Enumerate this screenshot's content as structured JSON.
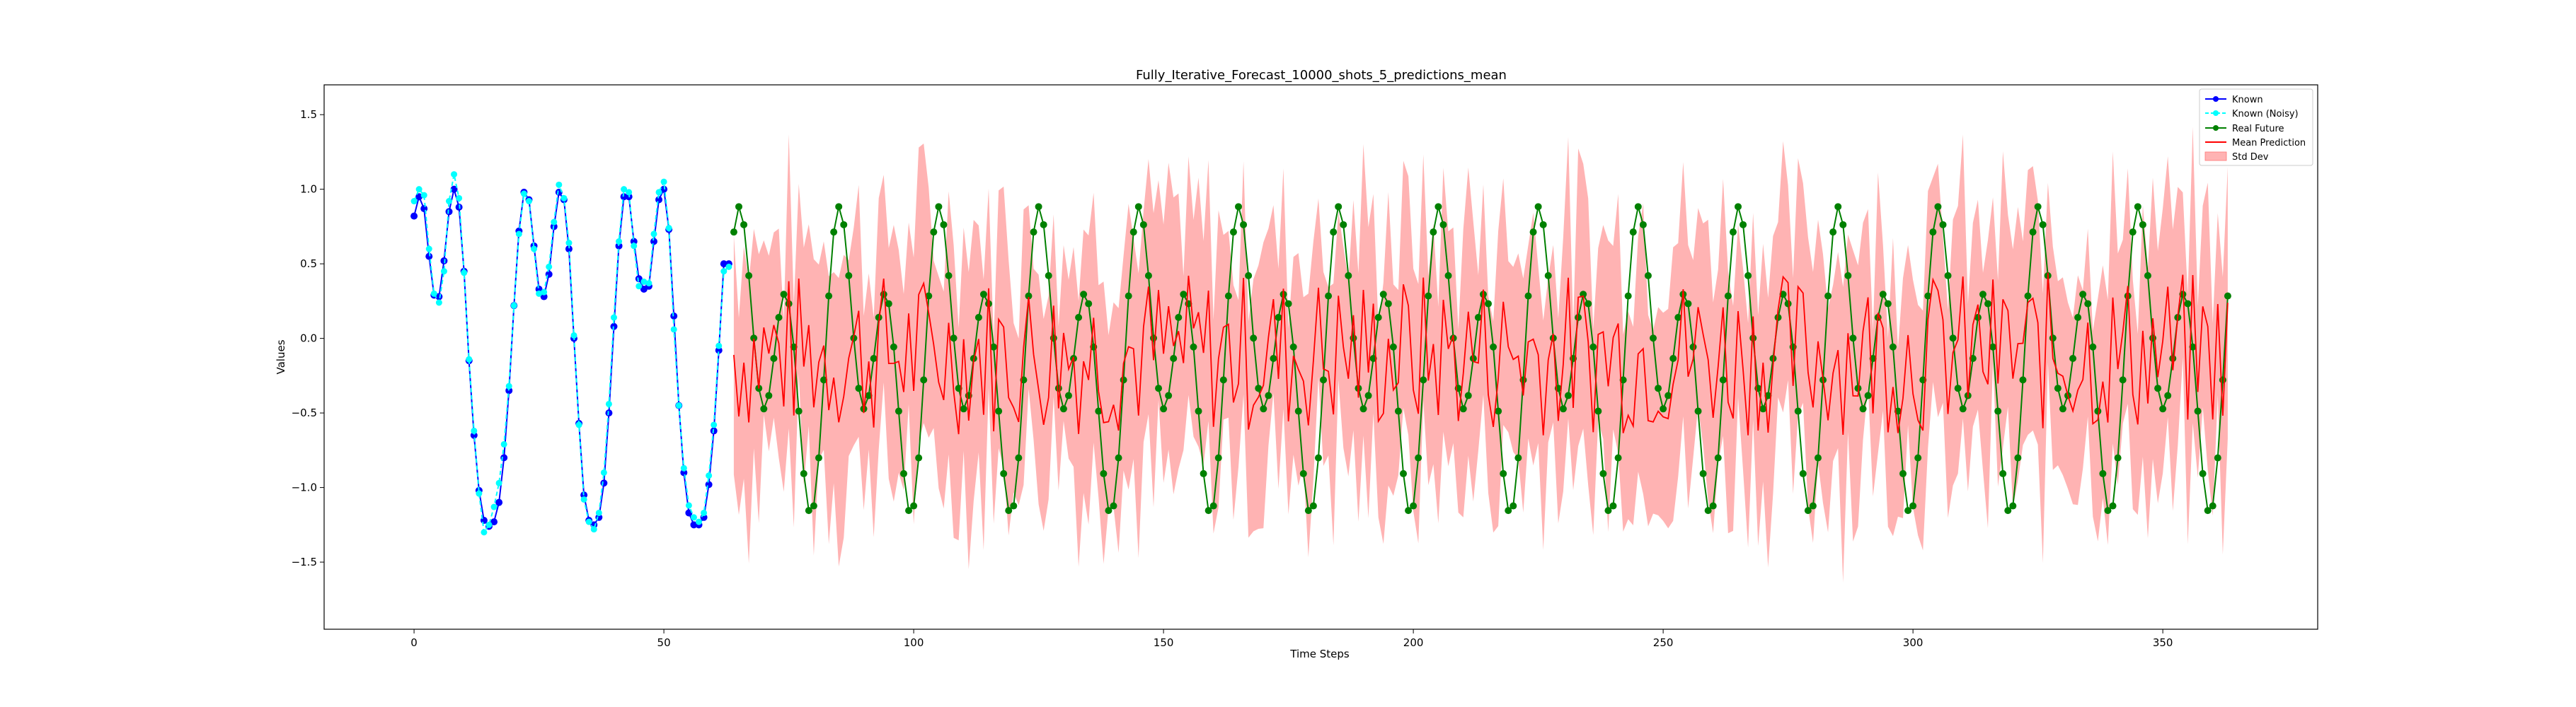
{
  "chart_data": {
    "type": "line",
    "title": "Fully_Iterative_Forecast_10000_shots_5_predictions_mean",
    "xlabel": "Time Steps",
    "ylabel": "Values",
    "xlim": [
      -18,
      381
    ],
    "ylim": [
      -1.95,
      1.7
    ],
    "x_ticks": [
      0,
      50,
      100,
      150,
      200,
      250,
      300,
      350
    ],
    "y_ticks": [
      -1.5,
      -1.0,
      -0.5,
      0.0,
      0.5,
      1.0,
      1.5
    ],
    "x_tick_labels": [
      "0",
      "50",
      "100",
      "150",
      "200",
      "250",
      "300",
      "350"
    ],
    "y_tick_labels": [
      "−1.5",
      "−1.0",
      "−0.5",
      "0.0",
      "0.5",
      "1.0",
      "1.5"
    ],
    "grid": false,
    "legend_position": "top-right",
    "colors": {
      "known": "#0000ff",
      "known_noisy": "#00ffff",
      "real_future": "#008000",
      "mean_prediction": "#ff0000",
      "std_dev": "#ff9999"
    },
    "series": [
      {
        "name": "Known",
        "x": [
          0,
          1,
          2,
          3,
          4,
          5,
          6,
          7,
          8,
          9,
          10,
          11,
          12,
          13,
          14,
          15,
          16,
          17,
          18,
          19,
          20,
          21,
          22,
          23,
          24,
          25,
          26,
          27,
          28,
          29,
          30,
          31,
          32,
          33,
          34,
          35,
          36,
          37,
          38,
          39,
          40,
          41,
          42,
          43,
          44,
          45,
          46,
          47,
          48,
          49,
          50,
          51,
          52,
          53,
          54,
          55,
          56,
          57,
          58,
          59,
          60,
          61,
          62,
          63
        ],
        "y": [
          0.82,
          0.95,
          0.87,
          0.55,
          0.29,
          0.28,
          0.52,
          0.85,
          1.0,
          0.88,
          0.45,
          -0.15,
          -0.65,
          -1.02,
          -1.22,
          -1.26,
          -1.23,
          -1.1,
          -0.8,
          -0.35,
          0.22,
          0.72,
          0.98,
          0.93,
          0.62,
          0.33,
          0.28,
          0.43,
          0.75,
          0.98,
          0.93,
          0.6,
          0.0,
          -0.57,
          -1.05,
          -1.22,
          -1.25,
          -1.2,
          -0.97,
          -0.5,
          0.08,
          0.62,
          0.95,
          0.95,
          0.65,
          0.4,
          0.33,
          0.35,
          0.65,
          0.93,
          1.0,
          0.73,
          0.15,
          -0.45,
          -0.9,
          -1.17,
          -1.25,
          -1.25,
          -1.2,
          -0.98,
          -0.62,
          -0.08,
          0.5,
          0.5
        ]
      },
      {
        "name": "Known (Noisy)",
        "x": [
          0,
          1,
          2,
          3,
          4,
          5,
          6,
          7,
          8,
          9,
          10,
          11,
          12,
          13,
          14,
          15,
          16,
          17,
          18,
          19,
          20,
          21,
          22,
          23,
          24,
          25,
          26,
          27,
          28,
          29,
          30,
          31,
          32,
          33,
          34,
          35,
          36,
          37,
          38,
          39,
          40,
          41,
          42,
          43,
          44,
          45,
          46,
          47,
          48,
          49,
          50,
          51,
          52,
          53,
          54,
          55,
          56,
          57,
          58,
          59,
          60,
          61,
          62,
          63
        ],
        "y": [
          0.92,
          1.0,
          0.96,
          0.6,
          0.3,
          0.24,
          0.45,
          0.92,
          1.1,
          0.94,
          0.44,
          -0.14,
          -0.62,
          -1.04,
          -1.3,
          -1.25,
          -1.13,
          -0.97,
          -0.71,
          -0.32,
          0.22,
          0.7,
          0.97,
          0.92,
          0.6,
          0.3,
          0.31,
          0.48,
          0.78,
          1.03,
          0.94,
          0.64,
          0.02,
          -0.58,
          -1.08,
          -1.23,
          -1.28,
          -1.17,
          -0.9,
          -0.44,
          0.14,
          0.65,
          1.0,
          0.98,
          0.62,
          0.35,
          0.38,
          0.37,
          0.7,
          0.98,
          1.05,
          0.74,
          0.06,
          -0.45,
          -0.87,
          -1.12,
          -1.2,
          -1.23,
          -1.17,
          -0.92,
          -0.58,
          -0.05,
          0.45,
          0.48
        ]
      },
      {
        "name": "Real Future",
        "wave": {
          "x_start": 64,
          "x_end": 363,
          "amplitude": 1.0,
          "phase": 0.0,
          "shape": "mean of sin(2*pi*t/20) and sin(2*pi*t/9), scaled, offset -0.12"
        },
        "x_range": [
          64,
          363
        ]
      },
      {
        "name": "Mean Prediction",
        "x_range": [
          64,
          363
        ]
      },
      {
        "name": "Std Dev",
        "x_range": [
          64,
          363
        ]
      }
    ],
    "legend": [
      "Known",
      "Known (Noisy)",
      "Real Future",
      "Mean Prediction",
      "Std Dev"
    ]
  }
}
